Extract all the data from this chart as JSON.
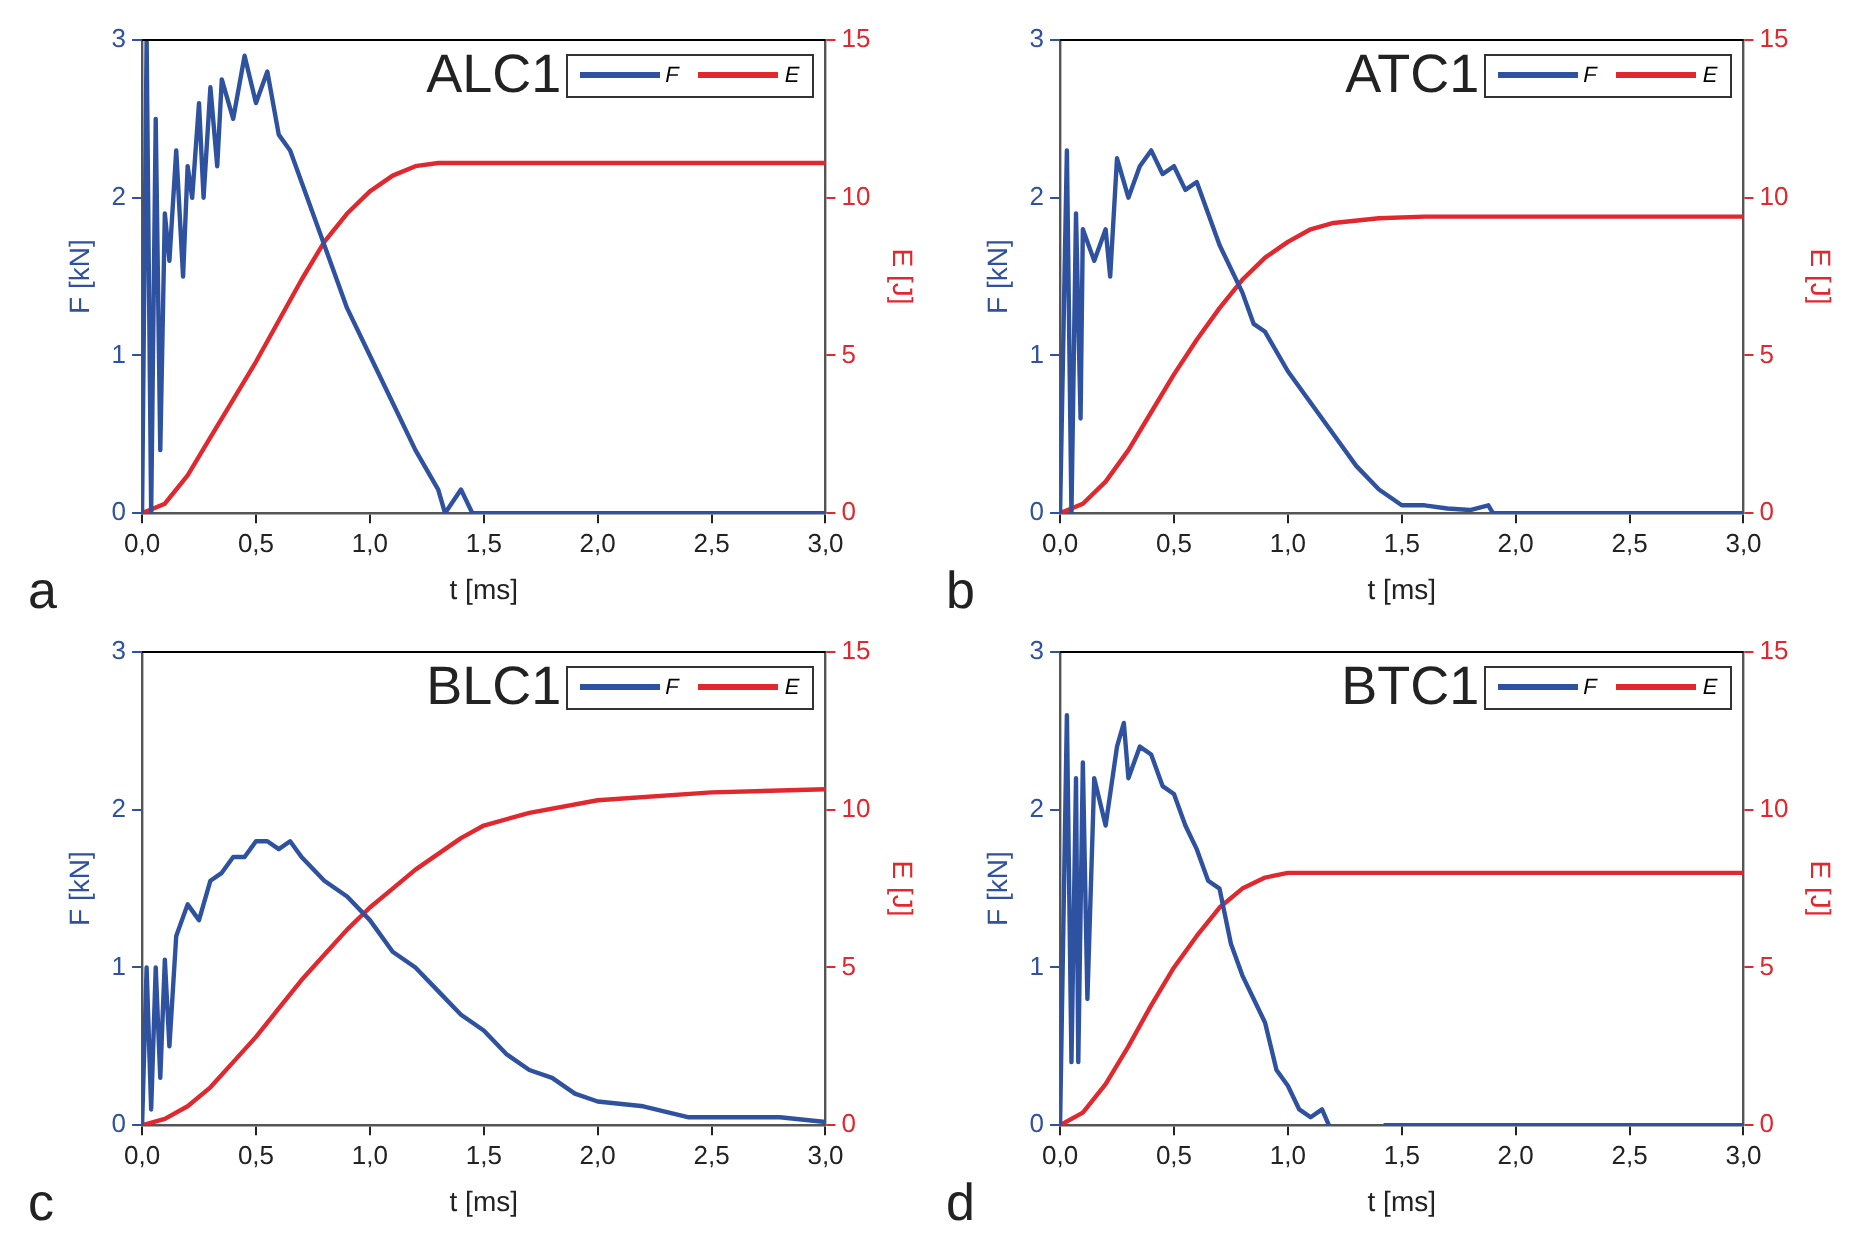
{
  "chart_data": [
    {
      "type": "line",
      "title": "ALC1",
      "xlabel": "t [ms]",
      "ylabel": "F [kN]",
      "y2label": "E [J]",
      "annotations": [
        "a"
      ],
      "legend": "top right",
      "grid": false,
      "xlim": [
        0,
        3
      ],
      "xticks": [
        {
          "value": 0,
          "label": "0,0"
        },
        {
          "value": 0.5,
          "label": "0,5"
        },
        {
          "value": 1,
          "label": "1,0"
        },
        {
          "value": 1.5,
          "label": "1,5"
        },
        {
          "value": 2,
          "label": "2,0"
        },
        {
          "value": 2.5,
          "label": "2,5"
        },
        {
          "value": 3,
          "label": "3,0"
        }
      ],
      "ylim": [
        0,
        3
      ],
      "yticks": [
        0,
        1,
        2,
        3
      ],
      "y2lim": [
        0,
        15
      ],
      "y2ticks": [
        0,
        5,
        10,
        15
      ],
      "series": [
        {
          "name": "F",
          "color": "#2f52a0",
          "x": [
            0,
            0.02,
            0.04,
            0.06,
            0.08,
            0.1,
            0.12,
            0.15,
            0.18,
            0.2,
            0.22,
            0.25,
            0.27,
            0.3,
            0.33,
            0.35,
            0.4,
            0.45,
            0.5,
            0.55,
            0.6,
            0.65,
            0.7,
            0.8,
            0.9,
            1.0,
            1.1,
            1.2,
            1.3,
            1.33,
            1.4,
            1.45,
            2.0,
            3.0
          ],
          "values": [
            0,
            3,
            0,
            2.5,
            0.4,
            1.9,
            1.6,
            2.3,
            1.5,
            2.2,
            2.0,
            2.6,
            2.0,
            2.7,
            2.2,
            2.75,
            2.5,
            2.9,
            2.6,
            2.8,
            2.4,
            2.3,
            2.1,
            1.7,
            1.3,
            1.0,
            0.7,
            0.4,
            0.15,
            0,
            0.15,
            0,
            0,
            0
          ]
        },
        {
          "name": "E",
          "color": "#e0282e",
          "axis": "y2",
          "x": [
            0,
            0.1,
            0.2,
            0.3,
            0.4,
            0.5,
            0.6,
            0.7,
            0.8,
            0.9,
            1.0,
            1.1,
            1.2,
            1.3,
            1.4,
            3.0
          ],
          "values": [
            0,
            0.3,
            1.2,
            2.4,
            3.6,
            4.8,
            6.1,
            7.4,
            8.6,
            9.5,
            10.2,
            10.7,
            11.0,
            11.1,
            11.1,
            11.1
          ]
        }
      ]
    },
    {
      "type": "line",
      "title": "ATC1",
      "xlabel": "t [ms]",
      "ylabel": "F [kN]",
      "y2label": "E [J]",
      "annotations": [
        "b"
      ],
      "legend": "top right",
      "grid": false,
      "xlim": [
        0,
        3
      ],
      "xticks": [
        {
          "value": 0,
          "label": "0,0"
        },
        {
          "value": 0.5,
          "label": "0,5"
        },
        {
          "value": 1,
          "label": "1,0"
        },
        {
          "value": 1.5,
          "label": "1,5"
        },
        {
          "value": 2,
          "label": "2,0"
        },
        {
          "value": 2.5,
          "label": "2,5"
        },
        {
          "value": 3,
          "label": "3,0"
        }
      ],
      "ylim": [
        0,
        3
      ],
      "yticks": [
        0,
        1,
        2,
        3
      ],
      "y2lim": [
        0,
        15
      ],
      "y2ticks": [
        0,
        5,
        10,
        15
      ],
      "series": [
        {
          "name": "F",
          "color": "#2f52a0",
          "x": [
            0,
            0.03,
            0.05,
            0.07,
            0.09,
            0.1,
            0.15,
            0.2,
            0.22,
            0.25,
            0.3,
            0.35,
            0.4,
            0.45,
            0.5,
            0.55,
            0.6,
            0.65,
            0.7,
            0.8,
            0.85,
            0.9,
            1.0,
            1.1,
            1.2,
            1.3,
            1.4,
            1.5,
            1.6,
            1.7,
            1.8,
            1.88,
            1.9,
            3.0
          ],
          "values": [
            0,
            2.3,
            0,
            1.9,
            0.6,
            1.8,
            1.6,
            1.8,
            1.5,
            2.25,
            2.0,
            2.2,
            2.3,
            2.15,
            2.2,
            2.05,
            2.1,
            1.9,
            1.7,
            1.4,
            1.2,
            1.15,
            0.9,
            0.7,
            0.5,
            0.3,
            0.15,
            0.05,
            0.05,
            0.03,
            0.02,
            0.05,
            0,
            0
          ]
        },
        {
          "name": "E",
          "color": "#e0282e",
          "axis": "y2",
          "x": [
            0,
            0.1,
            0.2,
            0.3,
            0.4,
            0.5,
            0.6,
            0.7,
            0.8,
            0.9,
            1.0,
            1.1,
            1.2,
            1.4,
            1.6,
            3.0
          ],
          "values": [
            0,
            0.3,
            1.0,
            2.0,
            3.2,
            4.4,
            5.5,
            6.5,
            7.4,
            8.1,
            8.6,
            9.0,
            9.2,
            9.35,
            9.4,
            9.4
          ]
        }
      ]
    },
    {
      "type": "line",
      "title": "BLC1",
      "xlabel": "t [ms]",
      "ylabel": "F [kN]",
      "y2label": "E [J]",
      "annotations": [
        "c"
      ],
      "legend": "top right",
      "grid": false,
      "xlim": [
        0,
        3
      ],
      "xticks": [
        {
          "value": 0,
          "label": "0,0"
        },
        {
          "value": 0.5,
          "label": "0,5"
        },
        {
          "value": 1,
          "label": "1,0"
        },
        {
          "value": 1.5,
          "label": "1,5"
        },
        {
          "value": 2,
          "label": "2,0"
        },
        {
          "value": 2.5,
          "label": "2,5"
        },
        {
          "value": 3,
          "label": "3,0"
        }
      ],
      "ylim": [
        0,
        3
      ],
      "yticks": [
        0,
        1,
        2,
        3
      ],
      "y2lim": [
        0,
        15
      ],
      "y2ticks": [
        0,
        5,
        10,
        15
      ],
      "series": [
        {
          "name": "F",
          "color": "#2f52a0",
          "x": [
            0,
            0.02,
            0.04,
            0.06,
            0.08,
            0.1,
            0.12,
            0.15,
            0.2,
            0.25,
            0.3,
            0.35,
            0.4,
            0.45,
            0.5,
            0.55,
            0.6,
            0.65,
            0.7,
            0.8,
            0.9,
            1.0,
            1.1,
            1.2,
            1.3,
            1.4,
            1.5,
            1.6,
            1.7,
            1.8,
            1.9,
            2.0,
            2.2,
            2.4,
            2.6,
            2.8,
            3.0
          ],
          "values": [
            0,
            1.0,
            0.1,
            1.0,
            0.3,
            1.05,
            0.5,
            1.2,
            1.4,
            1.3,
            1.55,
            1.6,
            1.7,
            1.7,
            1.8,
            1.8,
            1.75,
            1.8,
            1.7,
            1.55,
            1.45,
            1.3,
            1.1,
            1.0,
            0.85,
            0.7,
            0.6,
            0.45,
            0.35,
            0.3,
            0.2,
            0.15,
            0.12,
            0.05,
            0.05,
            0.05,
            0.02
          ]
        },
        {
          "name": "E",
          "color": "#e0282e",
          "axis": "y2",
          "x": [
            0,
            0.1,
            0.2,
            0.3,
            0.4,
            0.5,
            0.6,
            0.7,
            0.8,
            0.9,
            1.0,
            1.1,
            1.2,
            1.3,
            1.4,
            1.5,
            1.7,
            2.0,
            2.5,
            3.0
          ],
          "values": [
            0,
            0.2,
            0.6,
            1.2,
            2.0,
            2.8,
            3.7,
            4.6,
            5.4,
            6.2,
            6.9,
            7.5,
            8.1,
            8.6,
            9.1,
            9.5,
            9.9,
            10.3,
            10.55,
            10.65
          ]
        }
      ]
    },
    {
      "type": "line",
      "title": "BTC1",
      "xlabel": "t [ms]",
      "ylabel": "F [kN]",
      "y2label": "E [J]",
      "annotations": [
        "d"
      ],
      "legend": "top right",
      "grid": false,
      "xlim": [
        0,
        3
      ],
      "xticks": [
        {
          "value": 0,
          "label": "0,0"
        },
        {
          "value": 0.5,
          "label": "0,5"
        },
        {
          "value": 1,
          "label": "1,0"
        },
        {
          "value": 1.5,
          "label": "1,5"
        },
        {
          "value": 2,
          "label": "2,0"
        },
        {
          "value": 2.5,
          "label": "2,5"
        },
        {
          "value": 3,
          "label": "3,0"
        }
      ],
      "ylim": [
        0,
        3
      ],
      "yticks": [
        0,
        1,
        2,
        3
      ],
      "y2lim": [
        0,
        15
      ],
      "y2ticks": [
        0,
        5,
        10,
        15
      ],
      "series": [
        {
          "name": "F",
          "color": "#2f52a0",
          "x": [
            0,
            0.03,
            0.05,
            0.07,
            0.08,
            0.1,
            0.12,
            0.15,
            0.2,
            0.25,
            0.28,
            0.3,
            0.35,
            0.4,
            0.45,
            0.5,
            0.55,
            0.6,
            0.65,
            0.7,
            0.75,
            0.8,
            0.85,
            0.9,
            0.95,
            1.0,
            1.05,
            1.1,
            1.15,
            1.18,
            1.3,
            1.42,
            3.0
          ],
          "values": [
            0,
            2.6,
            0.4,
            2.2,
            0.4,
            2.3,
            0.8,
            2.2,
            1.9,
            2.4,
            2.55,
            2.2,
            2.4,
            2.35,
            2.15,
            2.1,
            1.9,
            1.75,
            1.55,
            1.5,
            1.15,
            0.95,
            0.8,
            0.65,
            0.35,
            0.25,
            0.1,
            0.05,
            0.1,
            0,
            null,
            0,
            0
          ]
        },
        {
          "name": "E",
          "color": "#e0282e",
          "axis": "y2",
          "x": [
            0,
            0.1,
            0.2,
            0.3,
            0.4,
            0.5,
            0.6,
            0.7,
            0.8,
            0.9,
            1.0,
            1.05,
            3.0
          ],
          "values": [
            0,
            0.4,
            1.3,
            2.5,
            3.8,
            5.0,
            6.0,
            6.9,
            7.5,
            7.85,
            8.0,
            8.0,
            8.0
          ]
        }
      ]
    }
  ]
}
